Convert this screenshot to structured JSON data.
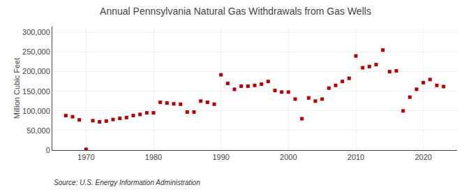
{
  "chart_data": {
    "type": "scatter",
    "title": "Annual Pennsylvania Natural Gas Withdrawals from Gas Wells",
    "ylabel": "Million Cubic Feet",
    "annotations": [
      "Source: U.S. Energy Information Administration"
    ],
    "x": [
      1967,
      1968,
      1969,
      1970,
      1971,
      1972,
      1973,
      1974,
      1975,
      1976,
      1977,
      1978,
      1979,
      1980,
      1981,
      1982,
      1983,
      1984,
      1985,
      1986,
      1987,
      1988,
      1989,
      1990,
      1991,
      1992,
      1993,
      1994,
      1995,
      1996,
      1997,
      1998,
      1999,
      2000,
      2001,
      2002,
      2003,
      2004,
      2005,
      2006,
      2007,
      2008,
      2009,
      2010,
      2011,
      2012,
      2013,
      2014,
      2015,
      2016,
      2017,
      2018,
      2019,
      2020,
      2021,
      2022,
      2023
    ],
    "values": [
      88000,
      85000,
      77000,
      2000,
      75000,
      72000,
      74000,
      78000,
      81000,
      83000,
      88000,
      91000,
      95000,
      95000,
      122000,
      120000,
      118000,
      117000,
      97000,
      97000,
      125000,
      122000,
      117000,
      192000,
      170000,
      155000,
      163000,
      163000,
      165000,
      168000,
      175000,
      152000,
      148000,
      148000,
      130000,
      80000,
      133000,
      125000,
      130000,
      158000,
      165000,
      175000,
      183000,
      240000,
      210000,
      213000,
      218000,
      255000,
      200000,
      202000,
      100000,
      135000,
      155000,
      172000,
      180000,
      165000,
      162000
    ],
    "color": "#bb0000",
    "marker": "square",
    "xlim": [
      1965,
      2025
    ],
    "xticks": [
      1970,
      1980,
      1990,
      2000,
      2010,
      2020
    ],
    "ylim": [
      0,
      315000
    ],
    "yticks": [
      0,
      {
        "value": 50000,
        "label": "50,000"
      },
      {
        "value": 100000,
        "label": "100,000"
      },
      {
        "value": 150000,
        "label": "150,000"
      },
      {
        "value": 200000,
        "label": "200,000"
      },
      {
        "value": 250000,
        "label": "250,000"
      },
      {
        "value": 300000,
        "label": "300,000"
      }
    ],
    "grid": true
  }
}
